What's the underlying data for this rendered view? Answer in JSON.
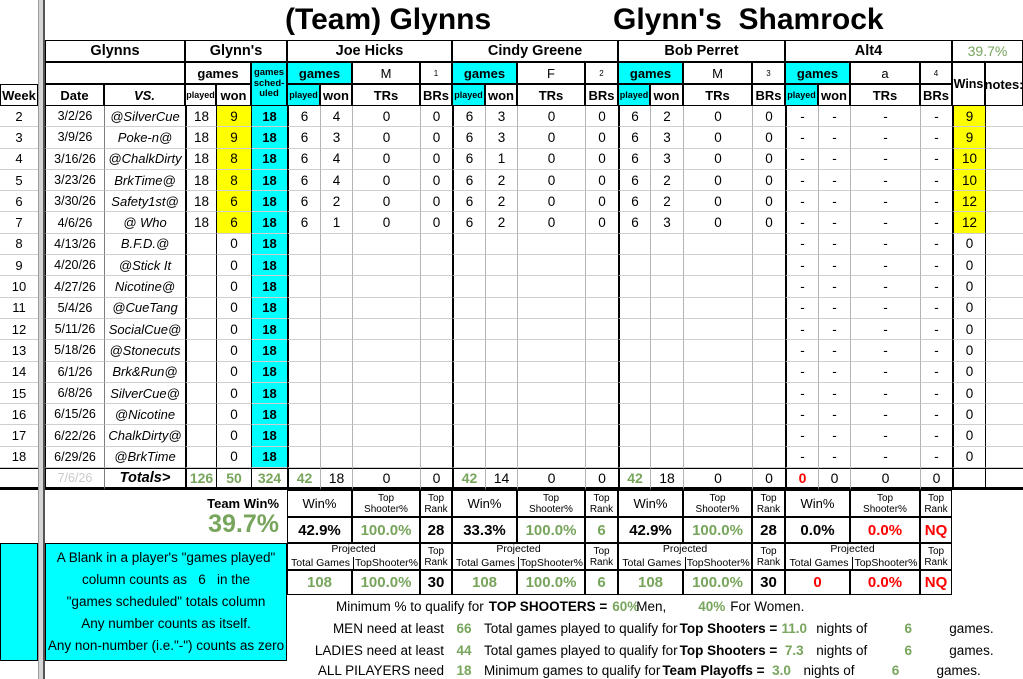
{
  "colors": {
    "accent_green": "#77a55b",
    "alert_red": "#ff0000",
    "highlight_yellow": "#ffff00",
    "highlight_cyan": "#00ffff"
  },
  "title": {
    "part1": "(Team) Glynns",
    "part2": "Glynn's  Shamrock"
  },
  "header": {
    "team_group": "Glynns",
    "team_group2": "Glynn's",
    "games": "games",
    "sched": [
      "games",
      "sched-",
      "uled"
    ],
    "week": "Week",
    "date": "Date",
    "vs": "VS.",
    "played": "played",
    "won": "won",
    "trs": "TRs",
    "brs": "BRs",
    "wins": "Wins",
    "notes": "notes:",
    "top_right_pct": "39.7%"
  },
  "players": [
    {
      "name": "Joe Hicks",
      "gender": "M",
      "num": "1"
    },
    {
      "name": "Cindy Greene",
      "gender": "F",
      "num": "2"
    },
    {
      "name": "Bob Perret",
      "gender": "M",
      "num": "3"
    },
    {
      "name": "Alt4",
      "gender": "a",
      "num": "4"
    }
  ],
  "rows": [
    {
      "week": "2",
      "date": "3/2/26",
      "vs": "@SilverCue",
      "team": [
        "18",
        "9",
        "18"
      ],
      "players": [
        [
          "6",
          "4",
          "0",
          "0"
        ],
        [
          "6",
          "3",
          "0",
          "0"
        ],
        [
          "6",
          "2",
          "0",
          "0"
        ],
        [
          "-",
          "-",
          "-",
          "-"
        ]
      ],
      "wins": "9",
      "hl": true
    },
    {
      "week": "3",
      "date": "3/9/26",
      "vs": "Poke-n@",
      "team": [
        "18",
        "9",
        "18"
      ],
      "players": [
        [
          "6",
          "3",
          "0",
          "0"
        ],
        [
          "6",
          "3",
          "0",
          "0"
        ],
        [
          "6",
          "3",
          "0",
          "0"
        ],
        [
          "-",
          "-",
          "-",
          "-"
        ]
      ],
      "wins": "9",
      "hl": true
    },
    {
      "week": "4",
      "date": "3/16/26",
      "vs": "@ChalkDirty",
      "team": [
        "18",
        "8",
        "18"
      ],
      "players": [
        [
          "6",
          "4",
          "0",
          "0"
        ],
        [
          "6",
          "1",
          "0",
          "0"
        ],
        [
          "6",
          "3",
          "0",
          "0"
        ],
        [
          "-",
          "-",
          "-",
          "-"
        ]
      ],
      "wins": "10",
      "hl": true
    },
    {
      "week": "5",
      "date": "3/23/26",
      "vs": "BrkTime@",
      "team": [
        "18",
        "8",
        "18"
      ],
      "players": [
        [
          "6",
          "4",
          "0",
          "0"
        ],
        [
          "6",
          "2",
          "0",
          "0"
        ],
        [
          "6",
          "2",
          "0",
          "0"
        ],
        [
          "-",
          "-",
          "-",
          "-"
        ]
      ],
      "wins": "10",
      "hl": true
    },
    {
      "week": "6",
      "date": "3/30/26",
      "vs": "Safety1st@",
      "team": [
        "18",
        "6",
        "18"
      ],
      "players": [
        [
          "6",
          "2",
          "0",
          "0"
        ],
        [
          "6",
          "2",
          "0",
          "0"
        ],
        [
          "6",
          "2",
          "0",
          "0"
        ],
        [
          "-",
          "-",
          "-",
          "-"
        ]
      ],
      "wins": "12",
      "hl": true
    },
    {
      "week": "7",
      "date": "4/6/26",
      "vs": "@ Who",
      "team": [
        "18",
        "6",
        "18"
      ],
      "players": [
        [
          "6",
          "1",
          "0",
          "0"
        ],
        [
          "6",
          "2",
          "0",
          "0"
        ],
        [
          "6",
          "3",
          "0",
          "0"
        ],
        [
          "-",
          "-",
          "-",
          "-"
        ]
      ],
      "wins": "12",
      "hl": true
    },
    {
      "week": "8",
      "date": "4/13/26",
      "vs": "B.F.D.@",
      "team": [
        "",
        "0",
        "18"
      ],
      "players": [
        [
          "",
          "",
          "",
          ""
        ],
        [
          "",
          "",
          "",
          ""
        ],
        [
          "",
          "",
          "",
          ""
        ],
        [
          "-",
          "-",
          "-",
          "-"
        ]
      ],
      "wins": "0",
      "hl": false
    },
    {
      "week": "9",
      "date": "4/20/26",
      "vs": "@Stick It",
      "team": [
        "",
        "0",
        "18"
      ],
      "players": [
        [
          "",
          "",
          "",
          ""
        ],
        [
          "",
          "",
          "",
          ""
        ],
        [
          "",
          "",
          "",
          ""
        ],
        [
          "-",
          "-",
          "-",
          "-"
        ]
      ],
      "wins": "0",
      "hl": false
    },
    {
      "week": "10",
      "date": "4/27/26",
      "vs": "Nicotine@",
      "team": [
        "",
        "0",
        "18"
      ],
      "players": [
        [
          "",
          "",
          "",
          ""
        ],
        [
          "",
          "",
          "",
          ""
        ],
        [
          "",
          "",
          "",
          ""
        ],
        [
          "-",
          "-",
          "-",
          "-"
        ]
      ],
      "wins": "0",
      "hl": false
    },
    {
      "week": "11",
      "date": "5/4/26",
      "vs": "@CueTang",
      "team": [
        "",
        "0",
        "18"
      ],
      "players": [
        [
          "",
          "",
          "",
          ""
        ],
        [
          "",
          "",
          "",
          ""
        ],
        [
          "",
          "",
          "",
          ""
        ],
        [
          "-",
          "-",
          "-",
          "-"
        ]
      ],
      "wins": "0",
      "hl": false
    },
    {
      "week": "12",
      "date": "5/11/26",
      "vs": "SocialCue@",
      "team": [
        "",
        "0",
        "18"
      ],
      "players": [
        [
          "",
          "",
          "",
          ""
        ],
        [
          "",
          "",
          "",
          ""
        ],
        [
          "",
          "",
          "",
          ""
        ],
        [
          "-",
          "-",
          "-",
          "-"
        ]
      ],
      "wins": "0",
      "hl": false
    },
    {
      "week": "13",
      "date": "5/18/26",
      "vs": "@Stonecuts",
      "team": [
        "",
        "0",
        "18"
      ],
      "players": [
        [
          "",
          "",
          "",
          ""
        ],
        [
          "",
          "",
          "",
          ""
        ],
        [
          "",
          "",
          "",
          ""
        ],
        [
          "-",
          "-",
          "-",
          "-"
        ]
      ],
      "wins": "0",
      "hl": false
    },
    {
      "week": "14",
      "date": "6/1/26",
      "vs": "Brk&Run@",
      "team": [
        "",
        "0",
        "18"
      ],
      "players": [
        [
          "",
          "",
          "",
          ""
        ],
        [
          "",
          "",
          "",
          ""
        ],
        [
          "",
          "",
          "",
          ""
        ],
        [
          "-",
          "-",
          "-",
          "-"
        ]
      ],
      "wins": "0",
      "hl": false
    },
    {
      "week": "15",
      "date": "6/8/26",
      "vs": "SilverCue@",
      "team": [
        "",
        "0",
        "18"
      ],
      "players": [
        [
          "",
          "",
          "",
          ""
        ],
        [
          "",
          "",
          "",
          ""
        ],
        [
          "",
          "",
          "",
          ""
        ],
        [
          "-",
          "-",
          "-",
          "-"
        ]
      ],
      "wins": "0",
      "hl": false
    },
    {
      "week": "16",
      "date": "6/15/26",
      "vs": "@Nicotine",
      "team": [
        "",
        "0",
        "18"
      ],
      "players": [
        [
          "",
          "",
          "",
          ""
        ],
        [
          "",
          "",
          "",
          ""
        ],
        [
          "",
          "",
          "",
          ""
        ],
        [
          "-",
          "-",
          "-",
          "-"
        ]
      ],
      "wins": "0",
      "hl": false
    },
    {
      "week": "17",
      "date": "6/22/26",
      "vs": "ChalkDirty@",
      "team": [
        "",
        "0",
        "18"
      ],
      "players": [
        [
          "",
          "",
          "",
          ""
        ],
        [
          "",
          "",
          "",
          ""
        ],
        [
          "",
          "",
          "",
          ""
        ],
        [
          "-",
          "-",
          "-",
          "-"
        ]
      ],
      "wins": "0",
      "hl": false
    },
    {
      "week": "18",
      "date": "6/29/26",
      "vs": "@BrkTime",
      "team": [
        "",
        "0",
        "18"
      ],
      "players": [
        [
          "",
          "",
          "",
          ""
        ],
        [
          "",
          "",
          "",
          ""
        ],
        [
          "",
          "",
          "",
          ""
        ],
        [
          "-",
          "-",
          "-",
          "-"
        ]
      ],
      "wins": "0",
      "hl": false
    }
  ],
  "totals": {
    "date": "7/6/26",
    "label": "Totals>",
    "team": [
      "126",
      "50",
      "324"
    ],
    "players": [
      [
        "42",
        "18",
        "0",
        "0"
      ],
      [
        "42",
        "14",
        "0",
        "0"
      ],
      [
        "42",
        "18",
        "0",
        "0"
      ],
      [
        "0",
        "0",
        "0",
        "0"
      ]
    ]
  },
  "stats": {
    "team_label": "Team Win%",
    "team_value": "39.7%",
    "win_label": "Win%",
    "ts_label1": "Top",
    "ts_label2": "Shooter%",
    "rank_label1": "Top",
    "rank_label2": "Rank",
    "players": [
      {
        "win": "42.9%",
        "win_cls": "k",
        "ts": "100.0%",
        "ts_cls": "g",
        "rank": "28",
        "rank_cls": "k",
        "rank_hl": false
      },
      {
        "win": "33.3%",
        "win_cls": "k",
        "ts": "100.0%",
        "ts_cls": "g",
        "rank": "6",
        "rank_cls": "g",
        "rank_hl": true
      },
      {
        "win": "42.9%",
        "win_cls": "k",
        "ts": "100.0%",
        "ts_cls": "g",
        "rank": "28",
        "rank_cls": "k",
        "rank_hl": false
      },
      {
        "win": "0.0%",
        "win_cls": "k",
        "ts": "0.0%",
        "ts_cls": "r",
        "rank": "NQ",
        "rank_cls": "r",
        "rank_hl": false
      }
    ]
  },
  "projected": {
    "label": "Projected",
    "games_label": "Total Games",
    "ts_label": "TopShooter%",
    "rank_label1": "Top",
    "rank_label2": "Rank",
    "players": [
      {
        "games": "108",
        "games_cls": "g",
        "ts": "100.0%",
        "ts_cls": "g",
        "rank": "30",
        "rank_cls": "k",
        "rank_hl": false
      },
      {
        "games": "108",
        "games_cls": "g",
        "ts": "100.0%",
        "ts_cls": "g",
        "rank": "6",
        "rank_cls": "g",
        "rank_hl": true
      },
      {
        "games": "108",
        "games_cls": "g",
        "ts": "100.0%",
        "ts_cls": "g",
        "rank": "30",
        "rank_cls": "k",
        "rank_hl": false
      },
      {
        "games": "0",
        "games_cls": "r",
        "ts": "0.0%",
        "ts_cls": "r",
        "rank": "NQ",
        "rank_cls": "r",
        "rank_hl": false
      }
    ]
  },
  "notes_box": {
    "lines": [
      "A Blank in a player's \"games played\"",
      "column counts as   6   in the",
      "\"games scheduled\" totals column",
      "Any number counts as itself.",
      "Any non-number (i.e.\"-\") counts as zero"
    ]
  },
  "footer": {
    "line1": {
      "a": "Minimum % to qualify for",
      "b": "TOP SHOOTERS =",
      "c": "60%",
      "d": "Men,",
      "e": "40%",
      "f": "For Women."
    },
    "line2": {
      "a": "MEN need at least",
      "n1": "66",
      "b": "Total games played to qualify for",
      "bb": "Top Shooters =",
      "n2": "11.0",
      "c": "nights of",
      "n3": "6",
      "d": "games."
    },
    "line3": {
      "a": "LADIES need at least",
      "n1": "44",
      "b": "Total games played to qualify for",
      "bb": "Top Shooters =",
      "n2": "7.3",
      "c": "nights of",
      "n3": "6",
      "d": "games."
    },
    "line4": {
      "a": "ALL PILAYERS need",
      "n1": "18",
      "b": "Minimum games to qualify for",
      "bb": "Team Playoffs =",
      "n2": "3.0",
      "c": "nights of",
      "n3": "6",
      "d": "games."
    }
  }
}
